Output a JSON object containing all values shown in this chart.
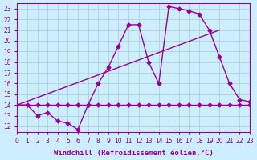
{
  "xlabel": "Windchill (Refroidissement éolien,°C)",
  "background_color": "#cceeff",
  "grid_color": "#aacccc",
  "line_color": "#990099",
  "xlim": [
    0,
    23
  ],
  "ylim": [
    11.5,
    23.5
  ],
  "xticks": [
    0,
    1,
    2,
    3,
    4,
    5,
    6,
    7,
    8,
    9,
    10,
    11,
    12,
    13,
    14,
    15,
    16,
    17,
    18,
    19,
    20,
    21,
    22,
    23
  ],
  "yticks": [
    12,
    13,
    14,
    15,
    16,
    17,
    18,
    19,
    20,
    21,
    22,
    23
  ],
  "series1_x": [
    0,
    1,
    2,
    3,
    4,
    5,
    6,
    7,
    8,
    9,
    10,
    11,
    12,
    13,
    14,
    15,
    16,
    17,
    18,
    19,
    20,
    21,
    22,
    23
  ],
  "series1_y": [
    14,
    14,
    13,
    13.3,
    12.5,
    12.3,
    11.7,
    14,
    16.0,
    17.5,
    19.5,
    21.5,
    21.5,
    18.0,
    16.0,
    23.2,
    23.0,
    22.8,
    22.5,
    21.0,
    18.5,
    16.0,
    14.5,
    14.3
  ],
  "series2_x": [
    0,
    1,
    2,
    3,
    4,
    5,
    6,
    7,
    8,
    9,
    10,
    11,
    12,
    13,
    14,
    15,
    16,
    17,
    18,
    19,
    20,
    21,
    22,
    23
  ],
  "series2_y": [
    14,
    14,
    14,
    14,
    14,
    14,
    14,
    14,
    14,
    14,
    14,
    14,
    14,
    14,
    14,
    14,
    14,
    14,
    14,
    14,
    14,
    14,
    14,
    14
  ],
  "series3_x": [
    0,
    20
  ],
  "series3_y": [
    14,
    21
  ],
  "marker": "D",
  "markersize": 2.5,
  "linewidth": 1.0,
  "tick_fontsize": 5.5,
  "xlabel_fontsize": 6.5,
  "tick_color": "#880088"
}
